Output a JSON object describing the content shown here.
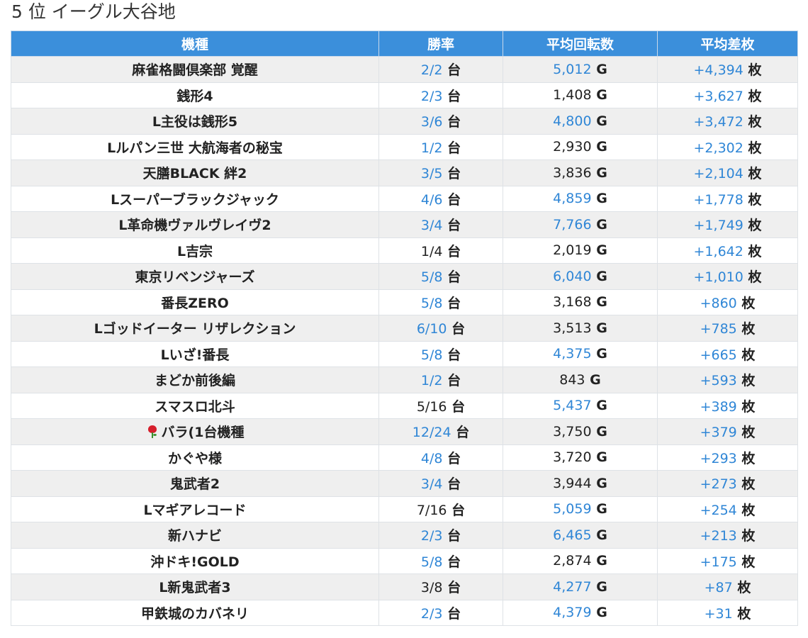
{
  "page_title": "5 位 イーグル大谷地",
  "table": {
    "headers": [
      "機種",
      "勝率",
      "平均回転数",
      "平均差枚"
    ],
    "rate_unit": "台",
    "spin_unit": "G",
    "diff_unit": "枚",
    "rows": [
      {
        "name": "麻雀格闘倶楽部 覚醒",
        "rate": "2/2",
        "rate_blue": true,
        "spins": "5,012",
        "spins_blue": true,
        "diff": "+4,394"
      },
      {
        "name": "銭形4",
        "rate": "2/3",
        "rate_blue": true,
        "spins": "1,408",
        "spins_blue": false,
        "diff": "+3,627"
      },
      {
        "name": "L主役は銭形5",
        "rate": "3/6",
        "rate_blue": true,
        "spins": "4,800",
        "spins_blue": true,
        "diff": "+3,472"
      },
      {
        "name": "Lルパン三世 大航海者の秘宝",
        "rate": "1/2",
        "rate_blue": true,
        "spins": "2,930",
        "spins_blue": false,
        "diff": "+2,302"
      },
      {
        "name": "天膳BLACK 絆2",
        "rate": "3/5",
        "rate_blue": true,
        "spins": "3,836",
        "spins_blue": false,
        "diff": "+2,104"
      },
      {
        "name": "Lスーパーブラックジャック",
        "rate": "4/6",
        "rate_blue": true,
        "spins": "4,859",
        "spins_blue": true,
        "diff": "+1,778"
      },
      {
        "name": "L革命機ヴァルヴレイヴ2",
        "rate": "3/4",
        "rate_blue": true,
        "spins": "7,766",
        "spins_blue": true,
        "diff": "+1,749"
      },
      {
        "name": "L吉宗",
        "rate": "1/4",
        "rate_blue": false,
        "spins": "2,019",
        "spins_blue": false,
        "diff": "+1,642"
      },
      {
        "name": "東京リベンジャーズ",
        "rate": "5/8",
        "rate_blue": true,
        "spins": "6,040",
        "spins_blue": true,
        "diff": "+1,010"
      },
      {
        "name": "番長ZERO",
        "rate": "5/8",
        "rate_blue": true,
        "spins": "3,168",
        "spins_blue": false,
        "diff": "+860"
      },
      {
        "name": "Lゴッドイーター リザレクション",
        "rate": "6/10",
        "rate_blue": true,
        "spins": "3,513",
        "spins_blue": false,
        "diff": "+785"
      },
      {
        "name": "Lいざ!番長",
        "rate": "5/8",
        "rate_blue": true,
        "spins": "4,375",
        "spins_blue": true,
        "diff": "+665"
      },
      {
        "name": "まどか前後編",
        "rate": "1/2",
        "rate_blue": true,
        "spins": "843",
        "spins_blue": false,
        "diff": "+593"
      },
      {
        "name": "スマスロ北斗",
        "rate": "5/16",
        "rate_blue": false,
        "spins": "5,437",
        "spins_blue": true,
        "diff": "+389"
      },
      {
        "name": "バラ(1台機種",
        "icon": "rose-icon",
        "rate": "12/24",
        "rate_blue": true,
        "spins": "3,750",
        "spins_blue": false,
        "diff": "+379"
      },
      {
        "name": "かぐや様",
        "rate": "4/8",
        "rate_blue": true,
        "spins": "3,720",
        "spins_blue": false,
        "diff": "+293"
      },
      {
        "name": "鬼武者2",
        "rate": "3/4",
        "rate_blue": true,
        "spins": "3,944",
        "spins_blue": false,
        "diff": "+273"
      },
      {
        "name": "Lマギアレコード",
        "rate": "7/16",
        "rate_blue": false,
        "spins": "5,059",
        "spins_blue": true,
        "diff": "+254"
      },
      {
        "name": "新ハナビ",
        "rate": "2/3",
        "rate_blue": true,
        "spins": "6,465",
        "spins_blue": true,
        "diff": "+213"
      },
      {
        "name": "沖ドキ!GOLD",
        "rate": "5/8",
        "rate_blue": true,
        "spins": "2,874",
        "spins_blue": false,
        "diff": "+175"
      },
      {
        "name": "L新鬼武者3",
        "rate": "3/8",
        "rate_blue": false,
        "spins": "4,277",
        "spins_blue": true,
        "diff": "+87"
      },
      {
        "name": "甲鉄城のカバネリ",
        "rate": "2/3",
        "rate_blue": true,
        "spins": "4,379",
        "spins_blue": true,
        "diff": "+31"
      }
    ]
  },
  "colors": {
    "header_bg": "#3b8fdb",
    "accent_blue": "#2f86d6",
    "row_stripe": "#efefef"
  }
}
